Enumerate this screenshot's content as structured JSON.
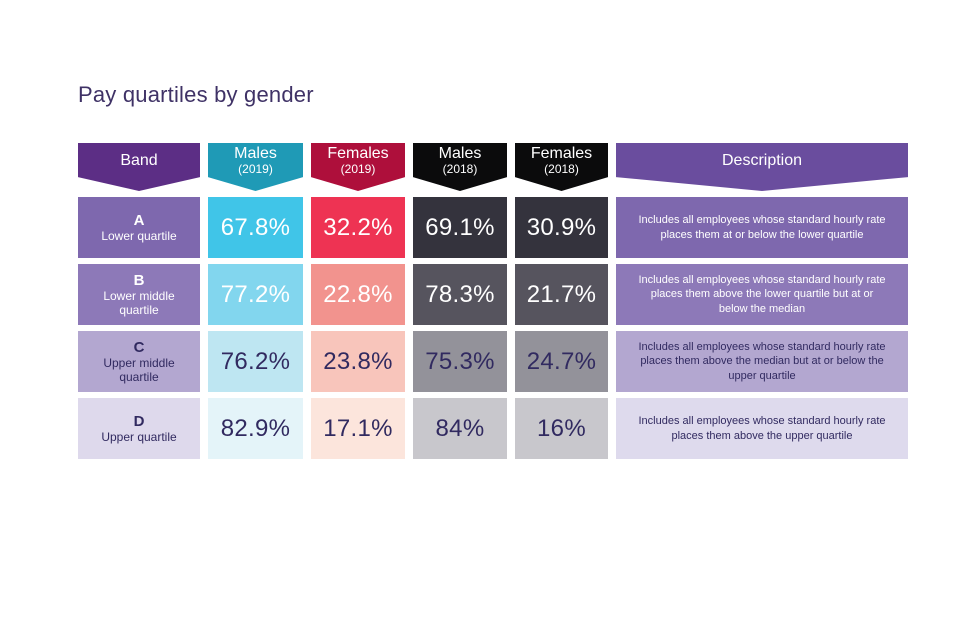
{
  "page": {
    "title": "Pay quartiles by gender",
    "title_color": "#3f3266",
    "background": "#ffffff"
  },
  "table": {
    "headers": [
      {
        "label": "Band",
        "sublabel": "",
        "bg": "#5c2e85"
      },
      {
        "label": "Males",
        "sublabel": "(2019)",
        "bg": "#1f9ab6"
      },
      {
        "label": "Females",
        "sublabel": "(2019)",
        "bg": "#ae0f3b"
      },
      {
        "label": "Males",
        "sublabel": "(2018)",
        "bg": "#0b0b0c"
      },
      {
        "label": "Females",
        "sublabel": "(2018)",
        "bg": "#0b0b0c"
      },
      {
        "label": "Description",
        "sublabel": "",
        "bg": "#6a4d9e"
      }
    ],
    "rows": [
      {
        "band_letter": "A",
        "band_label": "Lower quartile",
        "males_2019": "67.8%",
        "females_2019": "32.2%",
        "males_2018": "69.1%",
        "females_2018": "30.9%",
        "description": "Includes all employees whose standard hourly rate places them at or below the lower quartile",
        "style": {
          "text": "#ffffff",
          "band_bg": "#7e68ae",
          "males_2019_bg": "#40c5e8",
          "females_2019_bg": "#ee3353",
          "males_2018_bg": "#34333d",
          "females_2018_bg": "#34333d",
          "desc_bg": "#7e68ae"
        }
      },
      {
        "band_letter": "B",
        "band_label": "Lower middle quartile",
        "males_2019": "77.2%",
        "females_2019": "22.8%",
        "males_2018": "78.3%",
        "females_2018": "21.7%",
        "description": "Includes all employees whose standard hourly rate places them above the lower quartile but at or below the median",
        "style": {
          "text": "#ffffff",
          "band_bg": "#8d79b8",
          "males_2019_bg": "#82d6ee",
          "females_2019_bg": "#f2938e",
          "males_2018_bg": "#56545e",
          "females_2018_bg": "#56545e",
          "desc_bg": "#8d79b8"
        }
      },
      {
        "band_letter": "C",
        "band_label": "Upper middle quartile",
        "males_2019": "76.2%",
        "females_2019": "23.8%",
        "males_2018": "75.3%",
        "females_2018": "24.7%",
        "description": "Includes all employees whose standard hourly rate places them above the median but at or below the upper quartile",
        "style": {
          "text": "#312a60",
          "band_bg": "#b3a7d0",
          "males_2019_bg": "#bee6f2",
          "females_2019_bg": "#f8c5bb",
          "males_2018_bg": "#93929a",
          "females_2018_bg": "#93929a",
          "desc_bg": "#b3a7d0"
        }
      },
      {
        "band_letter": "D",
        "band_label": "Upper quartile",
        "males_2019": "82.9%",
        "females_2019": "17.1%",
        "males_2018": "84%",
        "females_2018": "16%",
        "description": "Includes all employees whose standard hourly rate places them above the upper quartile",
        "style": {
          "text": "#312a60",
          "band_bg": "#ded9ec",
          "males_2019_bg": "#e4f4f9",
          "females_2019_bg": "#fce5dc",
          "males_2018_bg": "#c8c7cc",
          "females_2018_bg": "#c8c7cc",
          "desc_bg": "#dedaed"
        }
      }
    ]
  },
  "chart_data": {
    "type": "table",
    "title": "Pay quartiles by gender",
    "columns": [
      "Band",
      "Males (2019)",
      "Females (2019)",
      "Males (2018)",
      "Females (2018)",
      "Description"
    ],
    "rows": [
      [
        "A — Lower quartile",
        67.8,
        32.2,
        69.1,
        30.9,
        "Includes all employees whose standard hourly rate places them at or below the lower quartile"
      ],
      [
        "B — Lower middle quartile",
        77.2,
        22.8,
        78.3,
        21.7,
        "Includes all employees whose standard hourly rate places them above the lower quartile but at or below the median"
      ],
      [
        "C — Upper middle quartile",
        76.2,
        23.8,
        75.3,
        24.7,
        "Includes all employees whose standard hourly rate places them above the median but at or below the upper quartile"
      ],
      [
        "D — Upper quartile",
        82.9,
        17.1,
        84,
        16,
        "Includes all employees whose standard hourly rate places them above the upper quartile"
      ]
    ],
    "units": "percent",
    "notes": "Values fade in saturation from row A (darkest) to row D (lightest)"
  }
}
